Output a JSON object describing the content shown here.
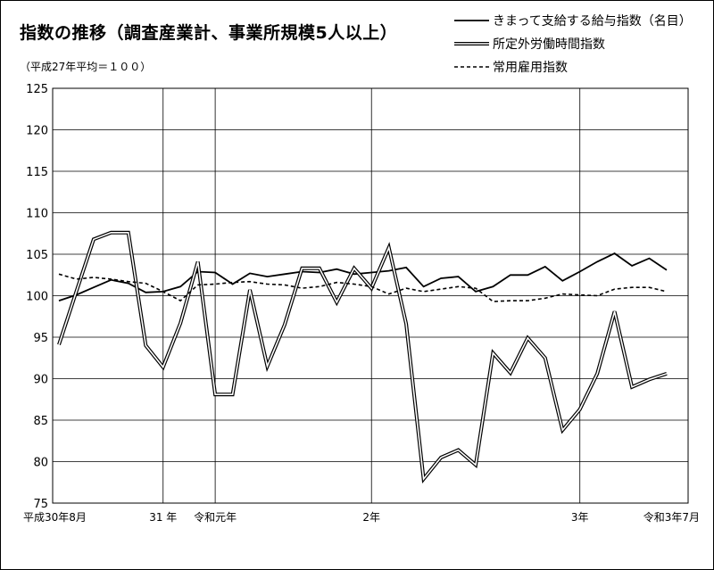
{
  "chart_data": {
    "type": "line",
    "title": "指数の推移（調査産業計、事業所規模5人以上）",
    "subtitle": "（平成27年平均＝１００）",
    "ylim": [
      75,
      125
    ],
    "y_ticks": [
      75,
      80,
      85,
      90,
      95,
      100,
      105,
      110,
      115,
      120,
      125
    ],
    "grid": true,
    "legend_position": "top-right",
    "x_tick_labels": [
      {
        "index": 0,
        "label": "平成30年8月"
      },
      {
        "index": 6,
        "label": "31 年"
      },
      {
        "index": 9,
        "label": "令和元年"
      },
      {
        "index": 18,
        "label": "2年"
      },
      {
        "index": 30,
        "label": "3年"
      },
      {
        "index": 35,
        "label": "令和3年7月"
      }
    ],
    "x_months": [
      "2018-08",
      "2018-09",
      "2018-10",
      "2018-11",
      "2018-12",
      "2019-01",
      "2019-02",
      "2019-03",
      "2019-04",
      "2019-05",
      "2019-06",
      "2019-07",
      "2019-08",
      "2019-09",
      "2019-10",
      "2019-11",
      "2019-12",
      "2020-01",
      "2020-02",
      "2020-03",
      "2020-04",
      "2020-05",
      "2020-06",
      "2020-07",
      "2020-08",
      "2020-09",
      "2020-10",
      "2020-11",
      "2020-12",
      "2021-01",
      "2021-02",
      "2021-03",
      "2021-04",
      "2021-05",
      "2021-06",
      "2021-07"
    ],
    "series": [
      {
        "name": "きまって支給する給与指数（名目）",
        "style": "solid",
        "values": [
          99.4,
          100.1,
          101.0,
          101.9,
          101.5,
          100.4,
          100.5,
          101.1,
          102.9,
          102.8,
          101.4,
          102.7,
          102.3,
          102.6,
          102.9,
          102.8,
          103.2,
          102.6,
          102.8,
          103.0,
          103.4,
          101.1,
          102.1,
          102.3,
          100.5,
          101.1,
          102.5,
          102.5,
          103.5,
          101.8,
          102.9,
          104.1,
          105.1,
          103.6,
          104.5,
          103.1
        ],
        "color": "#000000"
      },
      {
        "name": "所定外労働時間指数",
        "style": "double",
        "values": [
          94.1,
          100.5,
          106.8,
          107.6,
          107.6,
          94.0,
          91.4,
          96.7,
          104.1,
          88.1,
          88.1,
          100.7,
          91.5,
          96.5,
          103.3,
          103.3,
          99.2,
          103.3,
          100.9,
          105.8,
          96.6,
          77.9,
          80.5,
          81.4,
          79.6,
          93.1,
          90.7,
          94.9,
          92.5,
          83.8,
          86.3,
          90.6,
          98.1,
          89.0,
          89.9,
          90.6
        ],
        "color": "#000000"
      },
      {
        "name": "常用雇用指数",
        "style": "dashed",
        "values": [
          102.6,
          102.0,
          102.2,
          102.0,
          101.7,
          101.5,
          100.5,
          99.4,
          101.3,
          101.4,
          101.6,
          101.7,
          101.4,
          101.3,
          100.9,
          101.1,
          101.6,
          101.4,
          101.1,
          100.2,
          100.9,
          100.5,
          100.8,
          101.1,
          100.9,
          99.3,
          99.4,
          99.4,
          99.7,
          100.2,
          100.1,
          100.0,
          100.8,
          101.0,
          101.0,
          100.5
        ],
        "color": "#000000"
      }
    ]
  }
}
